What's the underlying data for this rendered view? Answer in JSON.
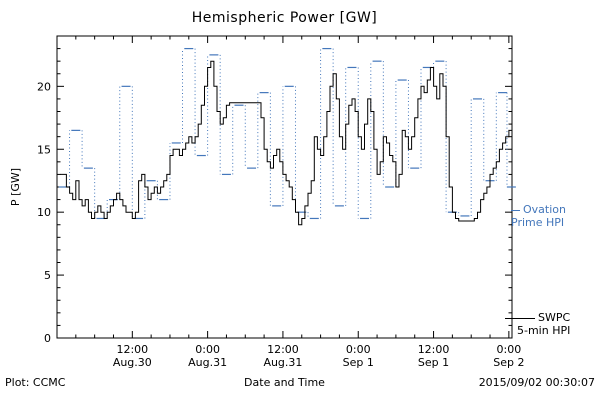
{
  "title": "Hemispheric Power [GW]",
  "footer": {
    "left": "Plot: CCMC",
    "right": "2015/09/02 00:30:07"
  },
  "legend": {
    "ovation": {
      "line1": "Ovation",
      "line2": "Prime HPI"
    },
    "swpc": {
      "line1": "SWPC",
      "line2": "5-min HPI"
    }
  },
  "chart_data": {
    "type": "line",
    "title": "Hemispheric Power [GW]",
    "xlabel": "Date and Time",
    "ylabel": "P [GW]",
    "ylim": [
      0,
      24
    ],
    "xlim_hours": [
      0,
      72.5
    ],
    "grid": false,
    "legend_position": "right-outside",
    "yticks": [
      {
        "value": 0,
        "label": "0"
      },
      {
        "value": 5,
        "label": "5"
      },
      {
        "value": 10,
        "label": "10"
      },
      {
        "value": 15,
        "label": "15"
      },
      {
        "value": 20,
        "label": "20"
      }
    ],
    "xticks": [
      {
        "hour": 12,
        "time": "12:00",
        "date": "Aug.30"
      },
      {
        "hour": 24,
        "time": "0:00",
        "date": "Aug.31"
      },
      {
        "hour": 36,
        "time": "12:00",
        "date": "Aug.31"
      },
      {
        "hour": 48,
        "time": "0:00",
        "date": "Sep 1"
      },
      {
        "hour": 60,
        "time": "12:00",
        "date": "Sep 1"
      },
      {
        "hour": 72,
        "time": "0:00",
        "date": "Sep 2"
      }
    ],
    "series": [
      {
        "name": "Ovation Prime HPI",
        "color": "#4477bb",
        "style": "dash-dot-step",
        "x": [
          1,
          3,
          5,
          7,
          9,
          11,
          13,
          15,
          17,
          19,
          21,
          23,
          25,
          27,
          29,
          31,
          33,
          35,
          37,
          39,
          41,
          43,
          45,
          47,
          49,
          51,
          53,
          55,
          57,
          59,
          61,
          63,
          65,
          67,
          69,
          71,
          72.4
        ],
        "values": [
          12,
          16.5,
          13.5,
          9.5,
          11,
          20,
          9.5,
          12.5,
          11,
          15.5,
          23,
          14.5,
          22.5,
          13,
          18.5,
          13.5,
          19.5,
          10.5,
          20,
          10,
          9.5,
          23,
          10.5,
          21.5,
          9.5,
          22,
          12,
          20.5,
          13.5,
          21.5,
          22,
          10,
          9.7,
          19,
          12.5,
          19.5,
          12
        ]
      },
      {
        "name": "SWPC 5-min HPI",
        "color": "#000000",
        "style": "step",
        "x_start": 0.5,
        "x_step": 0.5,
        "values": [
          13,
          13,
          12,
          11.5,
          11,
          12.5,
          11,
          10.5,
          11,
          10,
          9.5,
          10,
          10.5,
          10,
          9.5,
          10,
          10.5,
          11,
          11.5,
          11,
          10.5,
          10,
          10,
          9.5,
          10,
          12.5,
          13,
          12,
          11,
          11.5,
          12,
          11.5,
          12,
          12.5,
          13,
          14.5,
          15,
          15,
          14.5,
          15,
          15.5,
          16,
          15.5,
          16,
          17,
          18.5,
          20,
          21.5,
          22,
          20,
          18,
          17,
          17.5,
          18.5,
          18.7,
          18.7,
          18.7,
          18.7,
          18.7,
          18.7,
          18.7,
          18.7,
          18.7,
          18.7,
          17.5,
          15,
          14,
          13.5,
          14.5,
          15,
          14,
          13,
          12.5,
          12,
          11,
          10,
          9,
          9.5,
          10.5,
          11.5,
          12.5,
          16,
          15,
          14.5,
          16,
          18,
          20,
          21,
          19,
          16,
          15,
          17,
          18.5,
          19,
          18,
          16,
          15,
          17,
          19,
          18,
          15,
          13,
          14,
          16,
          15.5,
          14.5,
          14,
          12,
          13,
          16.5,
          16,
          15,
          16,
          17.5,
          19,
          20,
          19.5,
          20.5,
          21.5,
          20,
          19,
          21,
          20,
          16,
          12,
          10,
          9.5,
          9.3,
          9.3,
          9.3,
          9.3,
          9.3,
          9.5,
          10,
          11,
          11.5,
          12,
          13,
          13.5,
          14,
          15,
          15.5,
          16,
          16.5,
          17
        ]
      }
    ]
  }
}
